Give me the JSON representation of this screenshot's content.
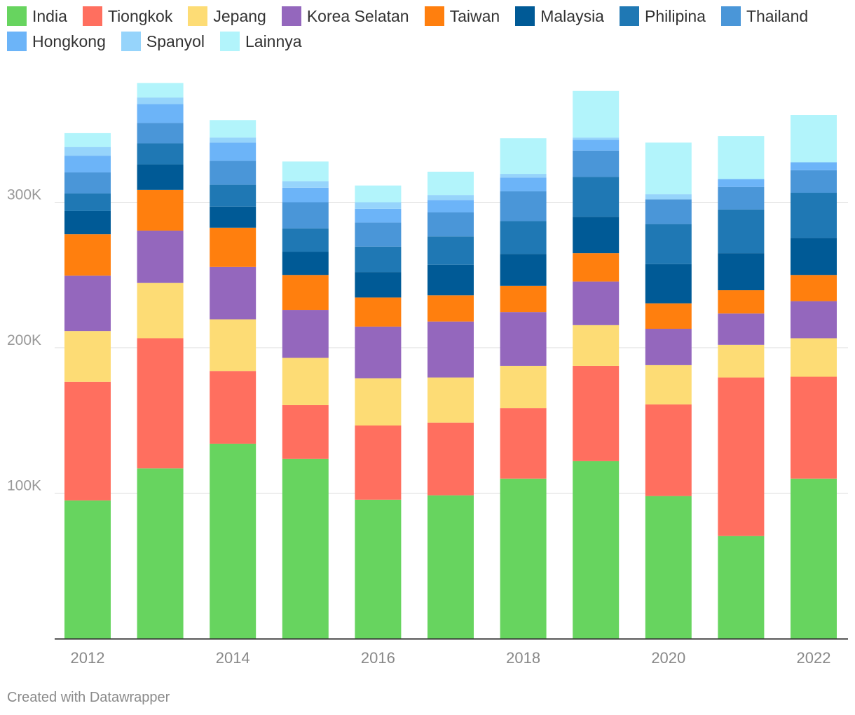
{
  "chart_data": {
    "type": "bar",
    "stacked": true,
    "categories": [
      "2012",
      "2013",
      "2014",
      "2015",
      "2016",
      "2017",
      "2018",
      "2019",
      "2020",
      "2021",
      "2022"
    ],
    "x_tick_labels": [
      "2012",
      "",
      "2014",
      "",
      "2016",
      "",
      "2018",
      "",
      "2020",
      "",
      "2022"
    ],
    "ylim": [
      0,
      380000
    ],
    "y_ticks": [
      {
        "value": 100000,
        "label": "100K"
      },
      {
        "value": 200000,
        "label": "200K"
      },
      {
        "value": 300000,
        "label": "300K"
      }
    ],
    "legend_position": "top",
    "series": [
      {
        "name": "India",
        "color": "#67d45f",
        "values": [
          95000,
          117000,
          134000,
          123500,
          95500,
          98500,
          110000,
          122000,
          98000,
          70500,
          110000
        ]
      },
      {
        "name": "Tiongkok",
        "color": "#ff6f5f",
        "values": [
          81500,
          89500,
          50000,
          37000,
          51000,
          50000,
          48500,
          65500,
          63000,
          109000,
          70000
        ]
      },
      {
        "name": "Jepang",
        "color": "#fddc75",
        "values": [
          35000,
          38000,
          35500,
          32500,
          32500,
          31000,
          29000,
          28000,
          27000,
          22500,
          26500
        ]
      },
      {
        "name": "Korea Selatan",
        "color": "#9467bd",
        "values": [
          38000,
          36000,
          36000,
          33000,
          35500,
          38500,
          37000,
          30000,
          25000,
          21500,
          25500
        ]
      },
      {
        "name": "Taiwan",
        "color": "#ff7f0e",
        "values": [
          28500,
          28000,
          27000,
          24000,
          20000,
          18000,
          18000,
          19500,
          17500,
          16000,
          18000
        ]
      },
      {
        "name": "Malaysia",
        "color": "#005a96",
        "values": [
          16000,
          17500,
          14500,
          16000,
          17500,
          21000,
          22000,
          25000,
          27000,
          25500,
          25500
        ]
      },
      {
        "name": "Philipina",
        "color": "#1f78b4",
        "values": [
          12000,
          14500,
          15000,
          16000,
          17500,
          19500,
          22500,
          27500,
          27500,
          30000,
          31000
        ]
      },
      {
        "name": "Thailand",
        "color": "#4a96d8",
        "values": [
          14500,
          14000,
          16500,
          18000,
          16500,
          16500,
          20500,
          18000,
          17000,
          15500,
          15500
        ]
      },
      {
        "name": "Hongkong",
        "color": "#6cb4f8",
        "values": [
          11500,
          13000,
          12500,
          10000,
          9500,
          8500,
          9500,
          7500,
          0,
          5500,
          5500
        ]
      },
      {
        "name": "Spanyol",
        "color": "#96d4fb",
        "values": [
          6000,
          4500,
          3500,
          4500,
          4500,
          3500,
          2500,
          1500,
          3500,
          0,
          0
        ]
      },
      {
        "name": "Lainnya",
        "color": "#b2f4fb",
        "values": [
          9500,
          10000,
          12000,
          13500,
          11500,
          16000,
          24500,
          32000,
          35500,
          29500,
          32500
        ]
      }
    ]
  },
  "footer": {
    "credit": "Created with Datawrapper"
  }
}
